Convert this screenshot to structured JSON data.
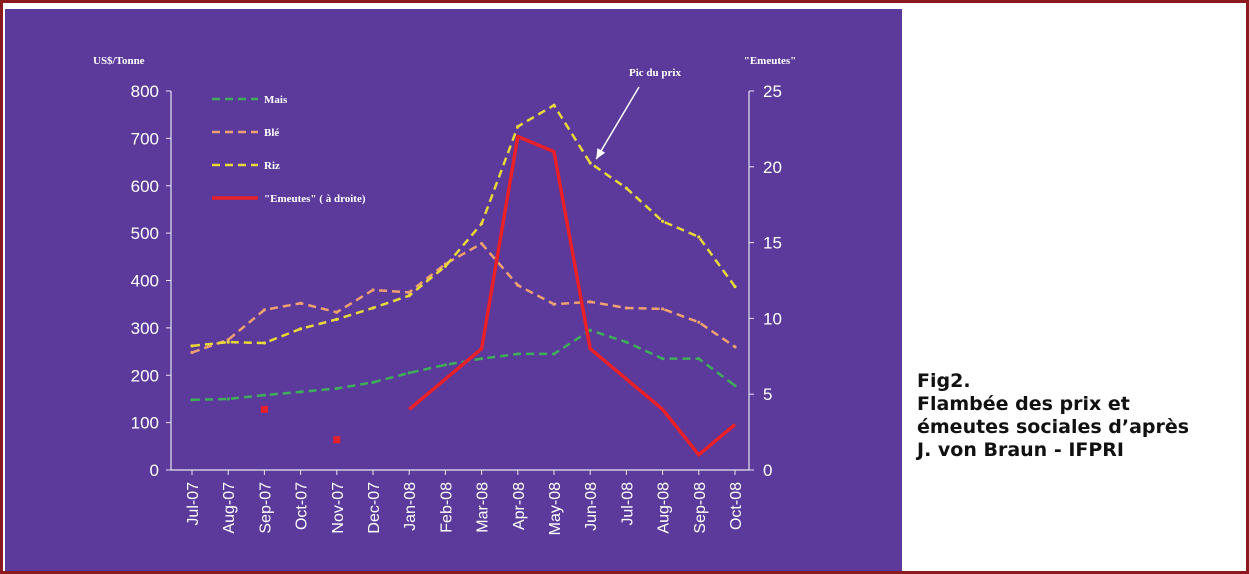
{
  "caption": {
    "fig": "Fig2.",
    "line1": "Flambée des prix et",
    "line2": "émeutes sociales d’après",
    "line3": "J. von Braun - IFPRI"
  },
  "chart_data": {
    "type": "line",
    "categories": [
      "Jul-07",
      "Aug-07",
      "Sep-07",
      "Oct-07",
      "Nov-07",
      "Dec-07",
      "Jan-08",
      "Feb-08",
      "Mar-08",
      "Apr-08",
      "May-08",
      "Jun-08",
      "Jul-08",
      "Aug-08",
      "Sep-08",
      "Oct-08"
    ],
    "ylabel": "US$/Tonne",
    "ylim": [
      0,
      800
    ],
    "yticks": [
      0,
      100,
      200,
      300,
      400,
      500,
      600,
      700,
      800
    ],
    "y2label": "\"Emeutes\"",
    "y2lim": [
      0,
      25
    ],
    "y2ticks": [
      0,
      5,
      10,
      15,
      20,
      25
    ],
    "background": "#5b3a9b",
    "grid": false,
    "legend_position": "top-left",
    "annotation": "Pic du prix",
    "annotation_target": {
      "category": "Jun-08",
      "value": 650
    },
    "series": [
      {
        "name": "Mais",
        "axis": "left",
        "style": "dashed",
        "color": "#3fae5a",
        "values": [
          148,
          150,
          158,
          165,
          172,
          185,
          205,
          222,
          235,
          245,
          245,
          295,
          270,
          235,
          235,
          178
        ]
      },
      {
        "name": "Blé",
        "axis": "left",
        "style": "dashed",
        "color": "#f0a070",
        "values": [
          248,
          275,
          338,
          352,
          333,
          380,
          375,
          435,
          478,
          390,
          350,
          355,
          342,
          340,
          312,
          260
        ]
      },
      {
        "name": "Riz",
        "axis": "left",
        "style": "dashed",
        "color": "#e8d838",
        "values": [
          262,
          270,
          268,
          298,
          318,
          342,
          368,
          430,
          520,
          725,
          770,
          648,
          595,
          525,
          492,
          387
        ]
      },
      {
        "name": "\"Emeutes\" ( à droite)",
        "axis": "right",
        "style": "solid",
        "color": "#e8202a",
        "values": [
          null,
          null,
          4,
          null,
          2,
          null,
          4,
          6,
          8,
          22,
          21,
          8,
          6,
          4,
          1,
          3
        ]
      }
    ]
  }
}
